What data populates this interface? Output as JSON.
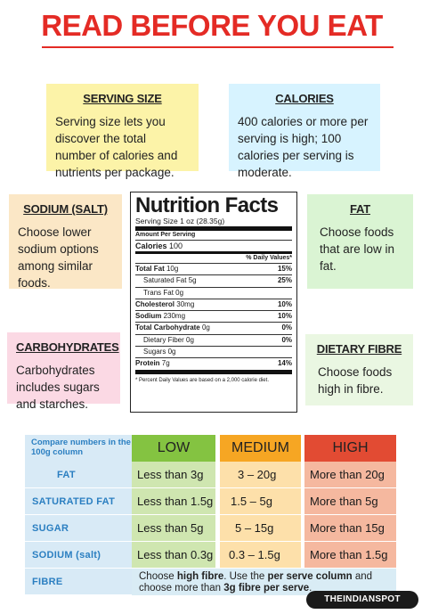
{
  "title": "READ BEFORE YOU EAT",
  "colors": {
    "title": "#e42b25",
    "low": "#84c341",
    "medium": "#f6a623",
    "high": "#e24b33",
    "row_label": "#2b7fc1"
  },
  "cards": {
    "serving": {
      "heading": "SERVING SIZE",
      "text": "Serving size lets you discover the total number of calories and nutrients per package."
    },
    "calories": {
      "heading": "CALORIES",
      "text": "400 calories or more per serving is high; 100 calories per serving is moderate."
    },
    "sodium": {
      "heading": "SODIUM (SALT)",
      "text": "Choose lower sodium options among similar foods."
    },
    "fat": {
      "heading": "FAT",
      "text": "Choose foods that are low in fat."
    },
    "carbs": {
      "heading": "CARBOHYDRATES",
      "text": "Carbohydrates includes sugars and starches."
    },
    "fibre": {
      "heading": "DIETARY FIBRE",
      "text": "Choose foods high in fibre."
    }
  },
  "label": {
    "title": "Nutrition Facts",
    "serving": "Serving Size 1 oz (28.35g)",
    "amount": "Amount Per Serving",
    "calories_label": "Calories",
    "calories_value": "100",
    "dv_header": "% Daily Values*",
    "rows": [
      {
        "name": "Total Fat",
        "amount": "10g",
        "dv": "15%"
      },
      {
        "name": "Saturated Fat",
        "amount": "5g",
        "dv": "25%"
      },
      {
        "name": "Trans Fat",
        "amount": "0g",
        "dv": ""
      },
      {
        "name": "Cholesterol",
        "amount": "30mg",
        "dv": "10%"
      },
      {
        "name": "Sodium",
        "amount": "230mg",
        "dv": "10%"
      },
      {
        "name": "Total Carbohydrate",
        "amount": "0g",
        "dv": "0%"
      },
      {
        "name": "Dietary Fiber",
        "amount": "0g",
        "dv": "0%"
      },
      {
        "name": "Sugars",
        "amount": "0g",
        "dv": ""
      },
      {
        "name": "Protein",
        "amount": "7g",
        "dv": "14%"
      }
    ],
    "footnote": "* Percent Daily Values are based on a 2,000 calorie diet."
  },
  "table": {
    "header_label": "Compare numbers in the 100g column",
    "low": "LOW",
    "medium": "MEDIUM",
    "high": "HIGH",
    "rows": [
      {
        "label": "FAT",
        "low": "Less than 3g",
        "medium": "3 – 20g",
        "high": "More than 20g"
      },
      {
        "label": "SATURATED FAT",
        "low": "Less than 1.5g",
        "medium": "1.5 – 5g",
        "high": "More than 5g"
      },
      {
        "label": "SUGAR",
        "low": "Less than 5g",
        "medium": "5 – 15g",
        "high": "More than 15g"
      },
      {
        "label": "SODIUM (salt)",
        "low": "Less than 0.3g",
        "medium": "0.3 – 1.5g",
        "high": "More than 1.5g"
      }
    ],
    "fibre_label": "FIBRE",
    "fibre_note": {
      "t1": "Choose ",
      "b1": "high fibre",
      "t2": ". Use the ",
      "b2": "per serve column",
      "t3": " and choose more than ",
      "b3": "3g fibre per serve",
      "t4": "."
    }
  },
  "watermark": "THEINDIANSPOT"
}
